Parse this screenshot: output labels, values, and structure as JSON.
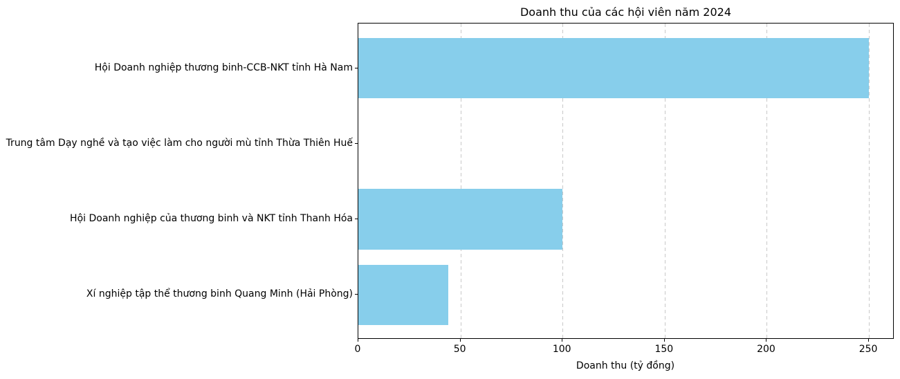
{
  "chart_data": {
    "type": "bar",
    "orientation": "horizontal",
    "title": "Doanh thu của các hội viên năm 2024",
    "xlabel": "Doanh thu (tỷ đồng)",
    "ylabel": "",
    "categories": [
      "Hội Doanh nghiệp thương binh-CCB-NKT tỉnh Hà Nam",
      "Trung tâm Dạy nghề và tạo việc làm cho người mù tỉnh Thừa Thiên Huế",
      "Hội Doanh nghiệp của thương binh và NKT tỉnh Thanh Hóa",
      "Xí nghiệp tập thể thương binh Quang Minh (Hải Phòng)"
    ],
    "values": [
      250,
      0,
      100,
      44
    ],
    "xticks": [
      0,
      50,
      100,
      150,
      200,
      250
    ],
    "xlim": [
      0,
      262.5
    ],
    "bar_color": "#87CEEB",
    "grid": "vertical-dashed",
    "grid_color": "#c8c8c8",
    "legend": "none"
  }
}
